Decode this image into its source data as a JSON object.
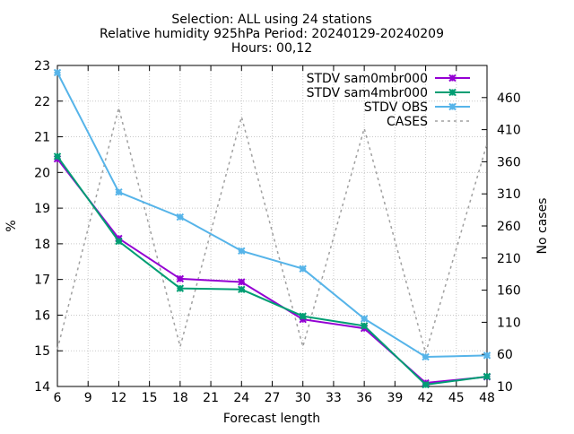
{
  "chart_data": {
    "type": "line",
    "title_lines": [
      "Selection: ALL using    24 stations",
      "Relative humidity 925hPa   Period: 20240129-20240209",
      "Hours: 00,12"
    ],
    "xlabel": "Forecast length",
    "ylabel": "%",
    "y2label": "No cases",
    "xlim": [
      6,
      48
    ],
    "ylim": [
      14,
      23
    ],
    "y2lim": [
      10,
      510
    ],
    "xticks": [
      6,
      9,
      12,
      15,
      18,
      21,
      24,
      27,
      30,
      33,
      36,
      39,
      42,
      45,
      48
    ],
    "yticks": [
      14,
      15,
      16,
      17,
      18,
      19,
      20,
      21,
      22,
      23
    ],
    "y2ticks": [
      10,
      60,
      110,
      160,
      210,
      260,
      310,
      360,
      410,
      460
    ],
    "grid": true,
    "legend_position": "top-right",
    "x": [
      6,
      12,
      18,
      24,
      30,
      36,
      42,
      48
    ],
    "series": [
      {
        "name": "STDV sam0mbr000",
        "axis": "y",
        "color": "#9400d3",
        "style": "line-points",
        "values": [
          20.38,
          18.15,
          17.02,
          16.93,
          15.88,
          15.63,
          14.1,
          14.27
        ]
      },
      {
        "name": "STDV sam4mbr000",
        "axis": "y",
        "color": "#009e73",
        "style": "line-points",
        "values": [
          20.45,
          18.07,
          16.75,
          16.72,
          15.97,
          15.7,
          14.05,
          14.28
        ]
      },
      {
        "name": "STDV OBS",
        "axis": "y",
        "color": "#56b4e9",
        "style": "line-points",
        "values": [
          22.8,
          19.45,
          18.75,
          17.8,
          17.3,
          15.9,
          14.83,
          14.87
        ]
      },
      {
        "name": "CASES",
        "axis": "y2",
        "color": "#a0a0a0",
        "style": "dashed",
        "values": [
          68,
          444,
          72,
          430,
          72,
          412,
          62,
          388
        ]
      }
    ]
  }
}
